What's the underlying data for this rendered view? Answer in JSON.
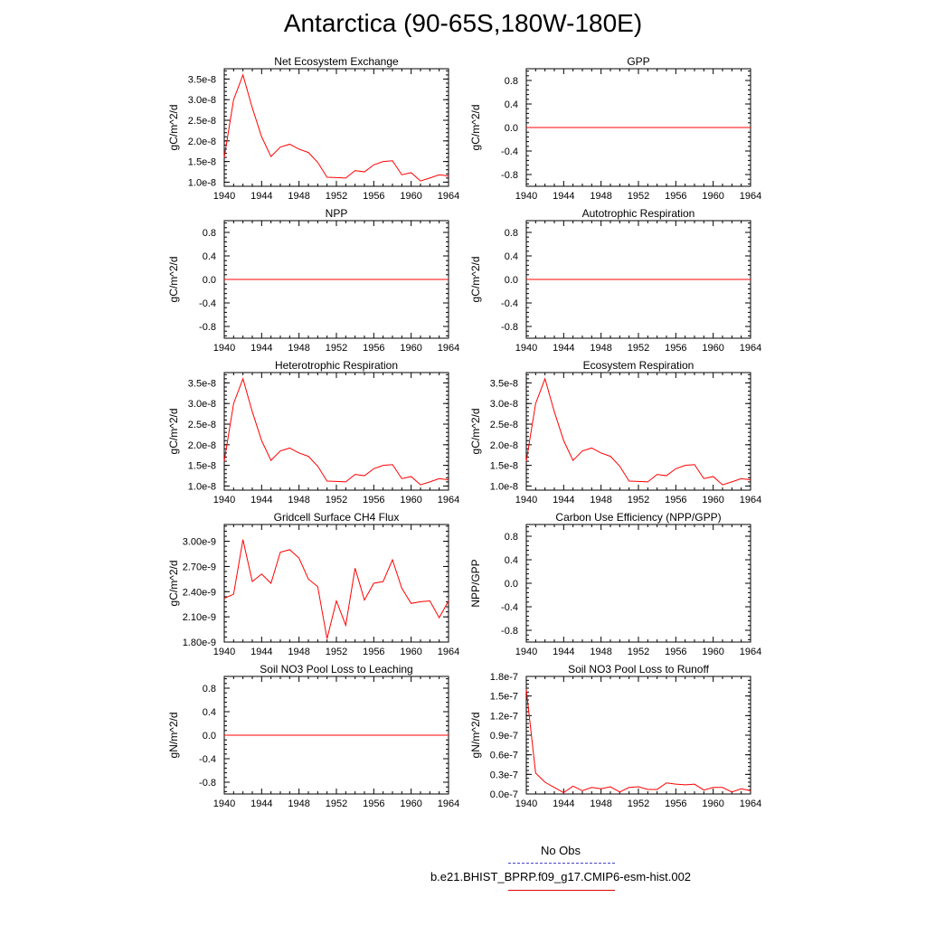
{
  "title": "Antarctica (90-65S,180W-180E)",
  "legend": {
    "entries": [
      {
        "label": "No Obs",
        "color": "#4444cc",
        "style": "dashed"
      },
      {
        "label": "b.e21.BHIST_BPRP.f09_g17.CMIP6-esm-hist.002",
        "color": "#e00000",
        "style": "solid"
      }
    ]
  },
  "colors": {
    "series": "#ff0000",
    "axis": "#000000"
  },
  "chart_data": [
    {
      "type": "line",
      "title": "Net Ecosystem Exchange",
      "ylabel": "gC/m^2/d",
      "xlim": [
        1940,
        1964
      ],
      "ylim": [
        9e-09,
        3.75e-08
      ],
      "xticks": [
        1940,
        1944,
        1948,
        1952,
        1956,
        1960,
        1964
      ],
      "yticks": [
        1e-08,
        1.5e-08,
        2e-08,
        2.5e-08,
        3e-08,
        3.5e-08
      ],
      "yticklabels": [
        "1.0e-8",
        "1.5e-8",
        "2.0e-8",
        "2.5e-8",
        "3.0e-8",
        "3.5e-8"
      ],
      "x": [
        1940,
        1941,
        1942,
        1943,
        1944,
        1945,
        1946,
        1947,
        1948,
        1949,
        1950,
        1951,
        1952,
        1953,
        1954,
        1955,
        1956,
        1957,
        1958,
        1959,
        1960,
        1961,
        1962,
        1963,
        1964
      ],
      "y": [
        1.6e-08,
        3e-08,
        3.6e-08,
        2.8e-08,
        2.1e-08,
        1.62e-08,
        1.85e-08,
        1.92e-08,
        1.8e-08,
        1.72e-08,
        1.48e-08,
        1.12e-08,
        1.11e-08,
        1.1e-08,
        1.28e-08,
        1.25e-08,
        1.42e-08,
        1.5e-08,
        1.52e-08,
        1.18e-08,
        1.23e-08,
        1.03e-08,
        1.1e-08,
        1.18e-08,
        1.15e-08
      ]
    },
    {
      "type": "line",
      "title": "GPP",
      "ylabel": "gC/m^2/d",
      "xlim": [
        1940,
        1964
      ],
      "ylim": [
        -1,
        1
      ],
      "xticks": [
        1940,
        1944,
        1948,
        1952,
        1956,
        1960,
        1964
      ],
      "yticks": [
        -0.8,
        -0.4,
        0.0,
        0.4,
        0.8
      ],
      "yticklabels": [
        "-0.8",
        "-0.4",
        "0.0",
        "0.4",
        "0.8"
      ],
      "x": [
        1940,
        1964
      ],
      "y": [
        0,
        0
      ]
    },
    {
      "type": "line",
      "title": "NPP",
      "ylabel": "gC/m^2/d",
      "xlim": [
        1940,
        1964
      ],
      "ylim": [
        -1,
        1
      ],
      "xticks": [
        1940,
        1944,
        1948,
        1952,
        1956,
        1960,
        1964
      ],
      "yticks": [
        -0.8,
        -0.4,
        0.0,
        0.4,
        0.8
      ],
      "yticklabels": [
        "-0.8",
        "-0.4",
        "0.0",
        "0.4",
        "0.8"
      ],
      "x": [
        1940,
        1964
      ],
      "y": [
        0,
        0
      ]
    },
    {
      "type": "line",
      "title": "Autotrophic Respiration",
      "ylabel": "gC/m^2/d",
      "xlim": [
        1940,
        1964
      ],
      "ylim": [
        -1,
        1
      ],
      "xticks": [
        1940,
        1944,
        1948,
        1952,
        1956,
        1960,
        1964
      ],
      "yticks": [
        -0.8,
        -0.4,
        0.0,
        0.4,
        0.8
      ],
      "yticklabels": [
        "-0.8",
        "-0.4",
        "0.0",
        "0.4",
        "0.8"
      ],
      "x": [
        1940,
        1964
      ],
      "y": [
        0,
        0
      ]
    },
    {
      "type": "line",
      "title": "Heterotrophic Respiration",
      "ylabel": "gC/m^2/d",
      "xlim": [
        1940,
        1964
      ],
      "ylim": [
        9e-09,
        3.75e-08
      ],
      "xticks": [
        1940,
        1944,
        1948,
        1952,
        1956,
        1960,
        1964
      ],
      "yticks": [
        1e-08,
        1.5e-08,
        2e-08,
        2.5e-08,
        3e-08,
        3.5e-08
      ],
      "yticklabels": [
        "1.0e-8",
        "1.5e-8",
        "2.0e-8",
        "2.5e-8",
        "3.0e-8",
        "3.5e-8"
      ],
      "x": [
        1940,
        1941,
        1942,
        1943,
        1944,
        1945,
        1946,
        1947,
        1948,
        1949,
        1950,
        1951,
        1952,
        1953,
        1954,
        1955,
        1956,
        1957,
        1958,
        1959,
        1960,
        1961,
        1962,
        1963,
        1964
      ],
      "y": [
        1.6e-08,
        3e-08,
        3.6e-08,
        2.8e-08,
        2.1e-08,
        1.62e-08,
        1.85e-08,
        1.92e-08,
        1.8e-08,
        1.72e-08,
        1.48e-08,
        1.12e-08,
        1.11e-08,
        1.1e-08,
        1.28e-08,
        1.25e-08,
        1.42e-08,
        1.5e-08,
        1.52e-08,
        1.18e-08,
        1.23e-08,
        1.03e-08,
        1.1e-08,
        1.18e-08,
        1.15e-08
      ]
    },
    {
      "type": "line",
      "title": "Ecosystem Respiration",
      "ylabel": "gC/m^2/d",
      "xlim": [
        1940,
        1964
      ],
      "ylim": [
        9e-09,
        3.75e-08
      ],
      "xticks": [
        1940,
        1944,
        1948,
        1952,
        1956,
        1960,
        1964
      ],
      "yticks": [
        1e-08,
        1.5e-08,
        2e-08,
        2.5e-08,
        3e-08,
        3.5e-08
      ],
      "yticklabels": [
        "1.0e-8",
        "1.5e-8",
        "2.0e-8",
        "2.5e-8",
        "3.0e-8",
        "3.5e-8"
      ],
      "x": [
        1940,
        1941,
        1942,
        1943,
        1944,
        1945,
        1946,
        1947,
        1948,
        1949,
        1950,
        1951,
        1952,
        1953,
        1954,
        1955,
        1956,
        1957,
        1958,
        1959,
        1960,
        1961,
        1962,
        1963,
        1964
      ],
      "y": [
        1.6e-08,
        3e-08,
        3.6e-08,
        2.8e-08,
        2.1e-08,
        1.62e-08,
        1.85e-08,
        1.92e-08,
        1.8e-08,
        1.72e-08,
        1.48e-08,
        1.12e-08,
        1.11e-08,
        1.1e-08,
        1.28e-08,
        1.25e-08,
        1.42e-08,
        1.5e-08,
        1.52e-08,
        1.18e-08,
        1.23e-08,
        1.03e-08,
        1.1e-08,
        1.18e-08,
        1.15e-08
      ]
    },
    {
      "type": "line",
      "title": "Gridcell Surface CH4 Flux",
      "ylabel": "gC/m^2/d",
      "xlim": [
        1940,
        1964
      ],
      "ylim": [
        1.8e-09,
        3.2e-09
      ],
      "xticks": [
        1940,
        1944,
        1948,
        1952,
        1956,
        1960,
        1964
      ],
      "yticks": [
        1.8e-09,
        2.1e-09,
        2.4e-09,
        2.7e-09,
        3e-09
      ],
      "yticklabels": [
        "1.80e-9",
        "2.10e-9",
        "2.40e-9",
        "2.70e-9",
        "3.00e-9"
      ],
      "x": [
        1940,
        1941,
        1942,
        1943,
        1944,
        1945,
        1946,
        1947,
        1948,
        1949,
        1950,
        1951,
        1952,
        1953,
        1954,
        1955,
        1956,
        1957,
        1958,
        1959,
        1960,
        1961,
        1962,
        1963,
        1964
      ],
      "y": [
        2.32e-09,
        2.37e-09,
        3.02e-09,
        2.52e-09,
        2.61e-09,
        2.5e-09,
        2.87e-09,
        2.9e-09,
        2.8e-09,
        2.55e-09,
        2.46e-09,
        1.84e-09,
        2.29e-09,
        2e-09,
        2.68e-09,
        2.3e-09,
        2.5e-09,
        2.52e-09,
        2.78e-09,
        2.44e-09,
        2.26e-09,
        2.28e-09,
        2.29e-09,
        2.09e-09,
        2.29e-09
      ]
    },
    {
      "type": "line",
      "title": "Carbon Use Efficiency (NPP/GPP)",
      "ylabel": "NPP/GPP",
      "xlim": [
        1940,
        1964
      ],
      "ylim": [
        -1,
        1
      ],
      "xticks": [
        1940,
        1944,
        1948,
        1952,
        1956,
        1960,
        1964
      ],
      "yticks": [
        -0.8,
        -0.4,
        0.0,
        0.4,
        0.8
      ],
      "yticklabels": [
        "-0.8",
        "-0.4",
        "0.0",
        "0.4",
        "0.8"
      ],
      "x": [],
      "y": []
    },
    {
      "type": "line",
      "title": "Soil NO3 Pool Loss to Leaching",
      "ylabel": "gN/m^2/d",
      "xlim": [
        1940,
        1964
      ],
      "ylim": [
        -1,
        1
      ],
      "xticks": [
        1940,
        1944,
        1948,
        1952,
        1956,
        1960,
        1964
      ],
      "yticks": [
        -0.8,
        -0.4,
        0.0,
        0.4,
        0.8
      ],
      "yticklabels": [
        "-0.8",
        "-0.4",
        "0.0",
        "0.4",
        "0.8"
      ],
      "x": [
        1940,
        1964
      ],
      "y": [
        0,
        0
      ]
    },
    {
      "type": "line",
      "title": "Soil NO3 Pool Loss to Runoff",
      "ylabel": "gN/m^2/d",
      "xlim": [
        1940,
        1964
      ],
      "ylim": [
        0,
        1.8e-07
      ],
      "xticks": [
        1940,
        1944,
        1948,
        1952,
        1956,
        1960,
        1964
      ],
      "yticks": [
        0,
        3e-08,
        6e-08,
        9e-08,
        1.2e-07,
        1.5e-07,
        1.8e-07
      ],
      "yticklabels": [
        "0.0e-7",
        "0.3e-7",
        "0.6e-7",
        "0.9e-7",
        "1.2e-7",
        "1.5e-7",
        "1.8e-7"
      ],
      "x": [
        1940,
        1941,
        1942,
        1943,
        1944,
        1945,
        1946,
        1947,
        1948,
        1949,
        1950,
        1951,
        1952,
        1953,
        1954,
        1955,
        1956,
        1957,
        1958,
        1959,
        1960,
        1961,
        1962,
        1963,
        1964
      ],
      "y": [
        1.6e-07,
        3.2e-08,
        1.8e-08,
        1e-08,
        2e-09,
        1.2e-08,
        5e-09,
        1e-08,
        8e-09,
        1.1e-08,
        3e-09,
        1e-08,
        1.1e-08,
        7e-09,
        7e-09,
        1.7e-08,
        1.5e-08,
        1.4e-08,
        1.5e-08,
        6e-09,
        1e-08,
        1e-08,
        3e-09,
        8e-09,
        5e-09
      ]
    }
  ]
}
